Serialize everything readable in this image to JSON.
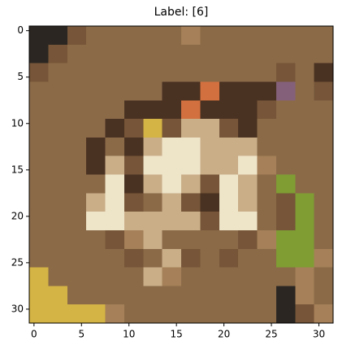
{
  "chart_data": {
    "type": "image",
    "title": "Label: [6]",
    "xlim": [
      -0.5,
      31.5
    ],
    "ylim": [
      31.5,
      -0.5
    ],
    "xticks": [
      0,
      5,
      10,
      15,
      20,
      25,
      30
    ],
    "yticks": [
      0,
      5,
      10,
      15,
      20,
      25,
      30
    ],
    "pixels": [
      [
        "#2b2622",
        "#2b2622",
        "#765538",
        "#8b6a48",
        "#8b6a48",
        "#8b6a48",
        "#8b6a48",
        "#8b6a48",
        "#a58058",
        "#8b6a48",
        "#8b6a48",
        "#8b6a48",
        "#8b6a48",
        "#8b6a48",
        "#8b6a48",
        "#8b6a48"
      ],
      [
        "#2b2622",
        "#765538",
        "#8b6a48",
        "#8b6a48",
        "#8b6a48",
        "#8b6a48",
        "#8b6a48",
        "#8b6a48",
        "#8b6a48",
        "#8b6a48",
        "#8b6a48",
        "#8b6a48",
        "#8b6a48",
        "#8b6a48",
        "#8b6a48",
        "#8b6a48"
      ],
      [
        "#765538",
        "#8b6a48",
        "#8b6a48",
        "#8b6a48",
        "#8b6a48",
        "#8b6a48",
        "#8b6a48",
        "#8b6a48",
        "#8b6a48",
        "#8b6a48",
        "#8b6a48",
        "#8b6a48",
        "#8b6a48",
        "#765538",
        "#8b6a48",
        "#4a3222"
      ],
      [
        "#8b6a48",
        "#8b6a48",
        "#8b6a48",
        "#8b6a48",
        "#8b6a48",
        "#8b6a48",
        "#8b6a48",
        "#4a3222",
        "#4a3222",
        "#d2703f",
        "#4a3222",
        "#4a3222",
        "#4a3222",
        "#84607a",
        "#8b6a48",
        "#765538"
      ],
      [
        "#8b6a48",
        "#8b6a48",
        "#8b6a48",
        "#8b6a48",
        "#8b6a48",
        "#4a3222",
        "#4a3222",
        "#4a3222",
        "#d2703f",
        "#4a3222",
        "#4a3222",
        "#4a3222",
        "#765538",
        "#8b6a48",
        "#8b6a48",
        "#8b6a48"
      ],
      [
        "#8b6a48",
        "#8b6a48",
        "#8b6a48",
        "#8b6a48",
        "#4a3222",
        "#765538",
        "#d4b444",
        "#765538",
        "#c9ae88",
        "#c9ae88",
        "#765538",
        "#4a3222",
        "#8b6a48",
        "#8b6a48",
        "#8b6a48",
        "#8b6a48"
      ],
      [
        "#8b6a48",
        "#8b6a48",
        "#8b6a48",
        "#4a3222",
        "#8b6a48",
        "#4a3222",
        "#c9ae88",
        "#eee4c8",
        "#eee4c8",
        "#c9ae88",
        "#c9ae88",
        "#c9ae88",
        "#8b6a48",
        "#8b6a48",
        "#8b6a48",
        "#8b6a48"
      ],
      [
        "#8b6a48",
        "#8b6a48",
        "#8b6a48",
        "#4a3222",
        "#c9ae88",
        "#765538",
        "#eee4c8",
        "#eee4c8",
        "#eee4c8",
        "#c9ae88",
        "#c9ae88",
        "#eee4c8",
        "#a58058",
        "#8b6a48",
        "#8b6a48",
        "#8b6a48"
      ],
      [
        "#8b6a48",
        "#8b6a48",
        "#8b6a48",
        "#8b6a48",
        "#eee4c8",
        "#4a3222",
        "#c9ae88",
        "#eee4c8",
        "#c9ae88",
        "#765538",
        "#eee4c8",
        "#c9ae88",
        "#8b6a48",
        "#7f9d33",
        "#8b6a48",
        "#8b6a48"
      ],
      [
        "#8b6a48",
        "#8b6a48",
        "#8b6a48",
        "#c9ae88",
        "#eee4c8",
        "#765538",
        "#8b6a48",
        "#c9ae88",
        "#765538",
        "#4a3222",
        "#eee4c8",
        "#c9ae88",
        "#8b6a48",
        "#765538",
        "#7f9d33",
        "#8b6a48"
      ],
      [
        "#8b6a48",
        "#8b6a48",
        "#8b6a48",
        "#eee4c8",
        "#eee4c8",
        "#c9ae88",
        "#c9ae88",
        "#c9ae88",
        "#c9ae88",
        "#765538",
        "#eee4c8",
        "#eee4c8",
        "#8b6a48",
        "#765538",
        "#7f9d33",
        "#8b6a48"
      ],
      [
        "#8b6a48",
        "#8b6a48",
        "#8b6a48",
        "#8b6a48",
        "#765538",
        "#a58058",
        "#c9ae88",
        "#8b6a48",
        "#8b6a48",
        "#8b6a48",
        "#8b6a48",
        "#765538",
        "#a58058",
        "#7f9d33",
        "#7f9d33",
        "#8b6a48"
      ],
      [
        "#8b6a48",
        "#8b6a48",
        "#8b6a48",
        "#8b6a48",
        "#8b6a48",
        "#765538",
        "#8b6a48",
        "#c9ae88",
        "#765538",
        "#8b6a48",
        "#765538",
        "#8b6a48",
        "#8b6a48",
        "#7f9d33",
        "#7f9d33",
        "#a58058"
      ],
      [
        "#d4b444",
        "#8b6a48",
        "#8b6a48",
        "#8b6a48",
        "#8b6a48",
        "#8b6a48",
        "#c9ae88",
        "#a58058",
        "#8b6a48",
        "#8b6a48",
        "#8b6a48",
        "#8b6a48",
        "#8b6a48",
        "#8b6a48",
        "#a58058",
        "#8b6a48"
      ],
      [
        "#d4b444",
        "#d4b444",
        "#8b6a48",
        "#8b6a48",
        "#8b6a48",
        "#8b6a48",
        "#8b6a48",
        "#8b6a48",
        "#8b6a48",
        "#8b6a48",
        "#8b6a48",
        "#8b6a48",
        "#8b6a48",
        "#2b2622",
        "#a58058",
        "#8b6a48"
      ],
      [
        "#d4b444",
        "#d4b444",
        "#d4b444",
        "#d4b444",
        "#a58058",
        "#8b6a48",
        "#8b6a48",
        "#8b6a48",
        "#8b6a48",
        "#8b6a48",
        "#8b6a48",
        "#8b6a48",
        "#8b6a48",
        "#2b2622",
        "#765538",
        "#a58058"
      ]
    ]
  }
}
